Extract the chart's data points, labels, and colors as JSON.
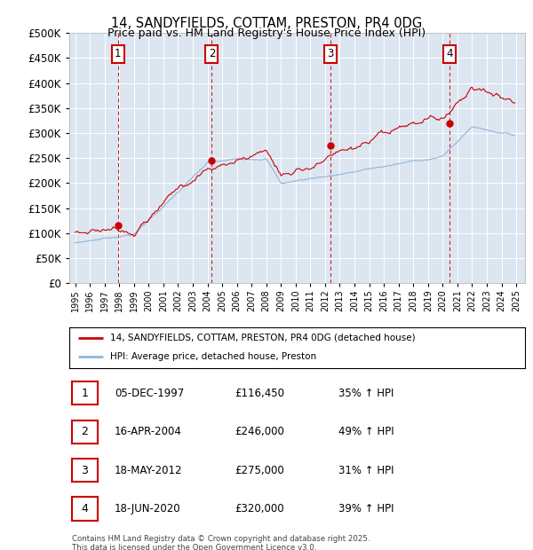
{
  "title": "14, SANDYFIELDS, COTTAM, PRESTON, PR4 0DG",
  "subtitle": "Price paid vs. HM Land Registry's House Price Index (HPI)",
  "red_label": "14, SANDYFIELDS, COTTAM, PRESTON, PR4 0DG (detached house)",
  "blue_label": "HPI: Average price, detached house, Preston",
  "sale_annotations": [
    {
      "num": "1",
      "date": "05-DEC-1997",
      "price": "£116,450",
      "pct": "35% ↑ HPI"
    },
    {
      "num": "2",
      "date": "16-APR-2004",
      "price": "£246,000",
      "pct": "49% ↑ HPI"
    },
    {
      "num": "3",
      "date": "18-MAY-2012",
      "price": "£275,000",
      "pct": "31% ↑ HPI"
    },
    {
      "num": "4",
      "date": "18-JUN-2020",
      "price": "£320,000",
      "pct": "39% ↑ HPI"
    }
  ],
  "sale_dates_num": [
    1997.917,
    2004.292,
    2012.375,
    2020.458
  ],
  "sale_prices": [
    116450,
    246000,
    275000,
    320000
  ],
  "footer": "Contains HM Land Registry data © Crown copyright and database right 2025.\nThis data is licensed under the Open Government Licence v3.0.",
  "bg_color": "#dce6f1",
  "red_color": "#cc0000",
  "blue_color": "#92b4d7",
  "yticks": [
    0,
    50000,
    100000,
    150000,
    200000,
    250000,
    300000,
    350000,
    400000,
    450000,
    500000
  ],
  "ylim": [
    0,
    500000
  ],
  "xlim": [
    1994.6,
    2025.6
  ],
  "xtick_years": [
    1995,
    1996,
    1997,
    1998,
    1999,
    2000,
    2001,
    2002,
    2003,
    2004,
    2005,
    2006,
    2007,
    2008,
    2009,
    2010,
    2011,
    2012,
    2013,
    2014,
    2015,
    2016,
    2017,
    2018,
    2019,
    2020,
    2021,
    2022,
    2023,
    2024,
    2025
  ]
}
